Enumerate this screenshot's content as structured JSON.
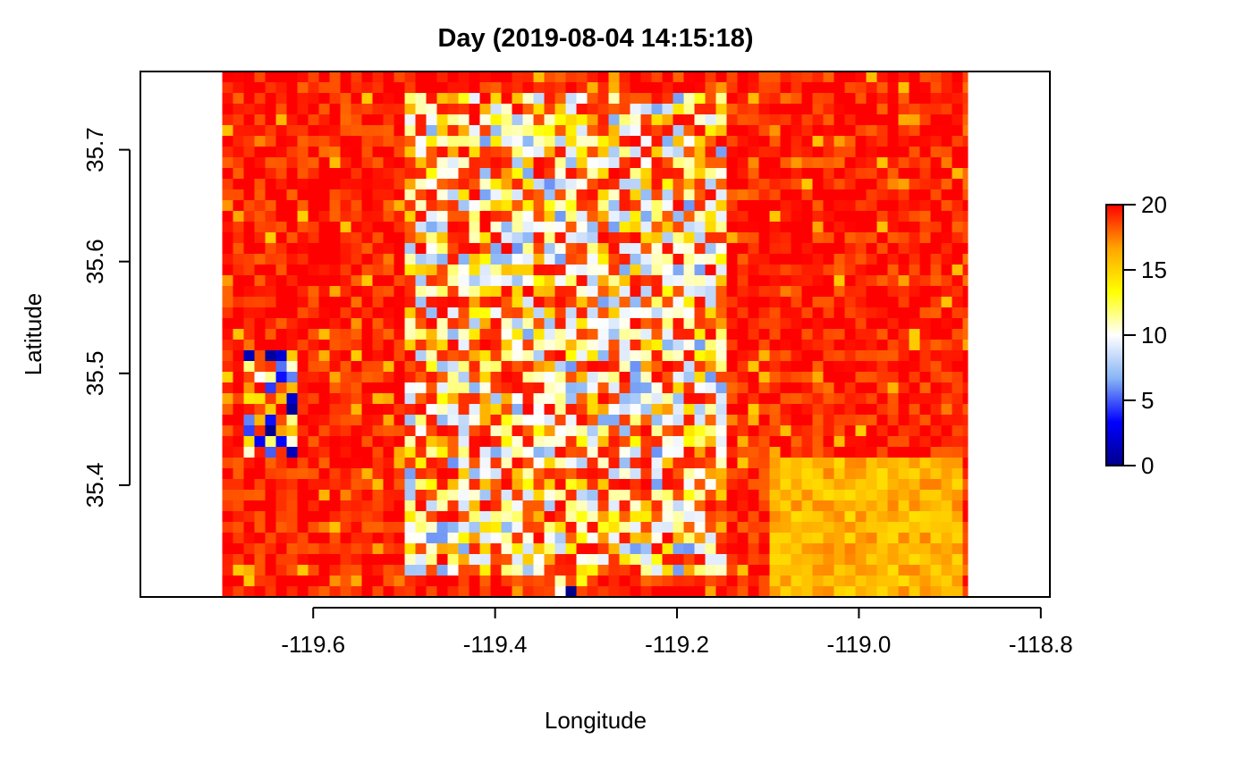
{
  "chart_data": {
    "type": "heatmap",
    "title": "Day (2019-08-04 14:15:18)",
    "xlabel": "Longitude",
    "ylabel": "Latitude",
    "xlim": [
      -119.79,
      -118.79
    ],
    "ylim": [
      35.3,
      35.77
    ],
    "raster_extent": {
      "lon": [
        -119.7,
        -118.88
      ],
      "lat": [
        35.3,
        35.77
      ]
    },
    "x_ticks": [
      -119.6,
      -119.4,
      -119.2,
      -119.0,
      -118.8
    ],
    "x_tick_labels": [
      "-119.6",
      "-119.4",
      "-119.2",
      "-119.0",
      "-118.8"
    ],
    "y_ticks": [
      35.4,
      35.5,
      35.6,
      35.7
    ],
    "y_tick_labels": [
      "35.4",
      "35.5",
      "35.6",
      "35.7"
    ],
    "value_range": [
      0,
      20
    ],
    "colorbar_ticks": [
      0,
      5,
      10,
      15,
      20
    ],
    "colorbar_tick_labels": [
      "0",
      "5",
      "10",
      "15",
      "20"
    ],
    "colormap": [
      "#00008b",
      "#0000ff",
      "#87b4f5",
      "#ffffff",
      "#ffff00",
      "#ffa500",
      "#ff0000"
    ],
    "grid": false,
    "legend": "right colorbar",
    "regions": [
      {
        "lon": [
          -119.7,
          -118.88
        ],
        "lat": [
          35.3,
          35.77
        ],
        "value": 19.5
      },
      {
        "lon": [
          -119.5,
          -119.15
        ],
        "lat": [
          35.32,
          35.75
        ],
        "value": 12
      },
      {
        "lon": [
          -119.68,
          -119.62
        ],
        "lat": [
          35.42,
          35.52
        ],
        "value": 6
      },
      {
        "lon": [
          -119.1,
          -118.88
        ],
        "lat": [
          35.3,
          35.42
        ],
        "value": 16
      },
      {
        "lon": [
          -119.36,
          -119.3
        ],
        "lat": [
          35.3,
          35.33
        ],
        "value": 3
      }
    ]
  }
}
